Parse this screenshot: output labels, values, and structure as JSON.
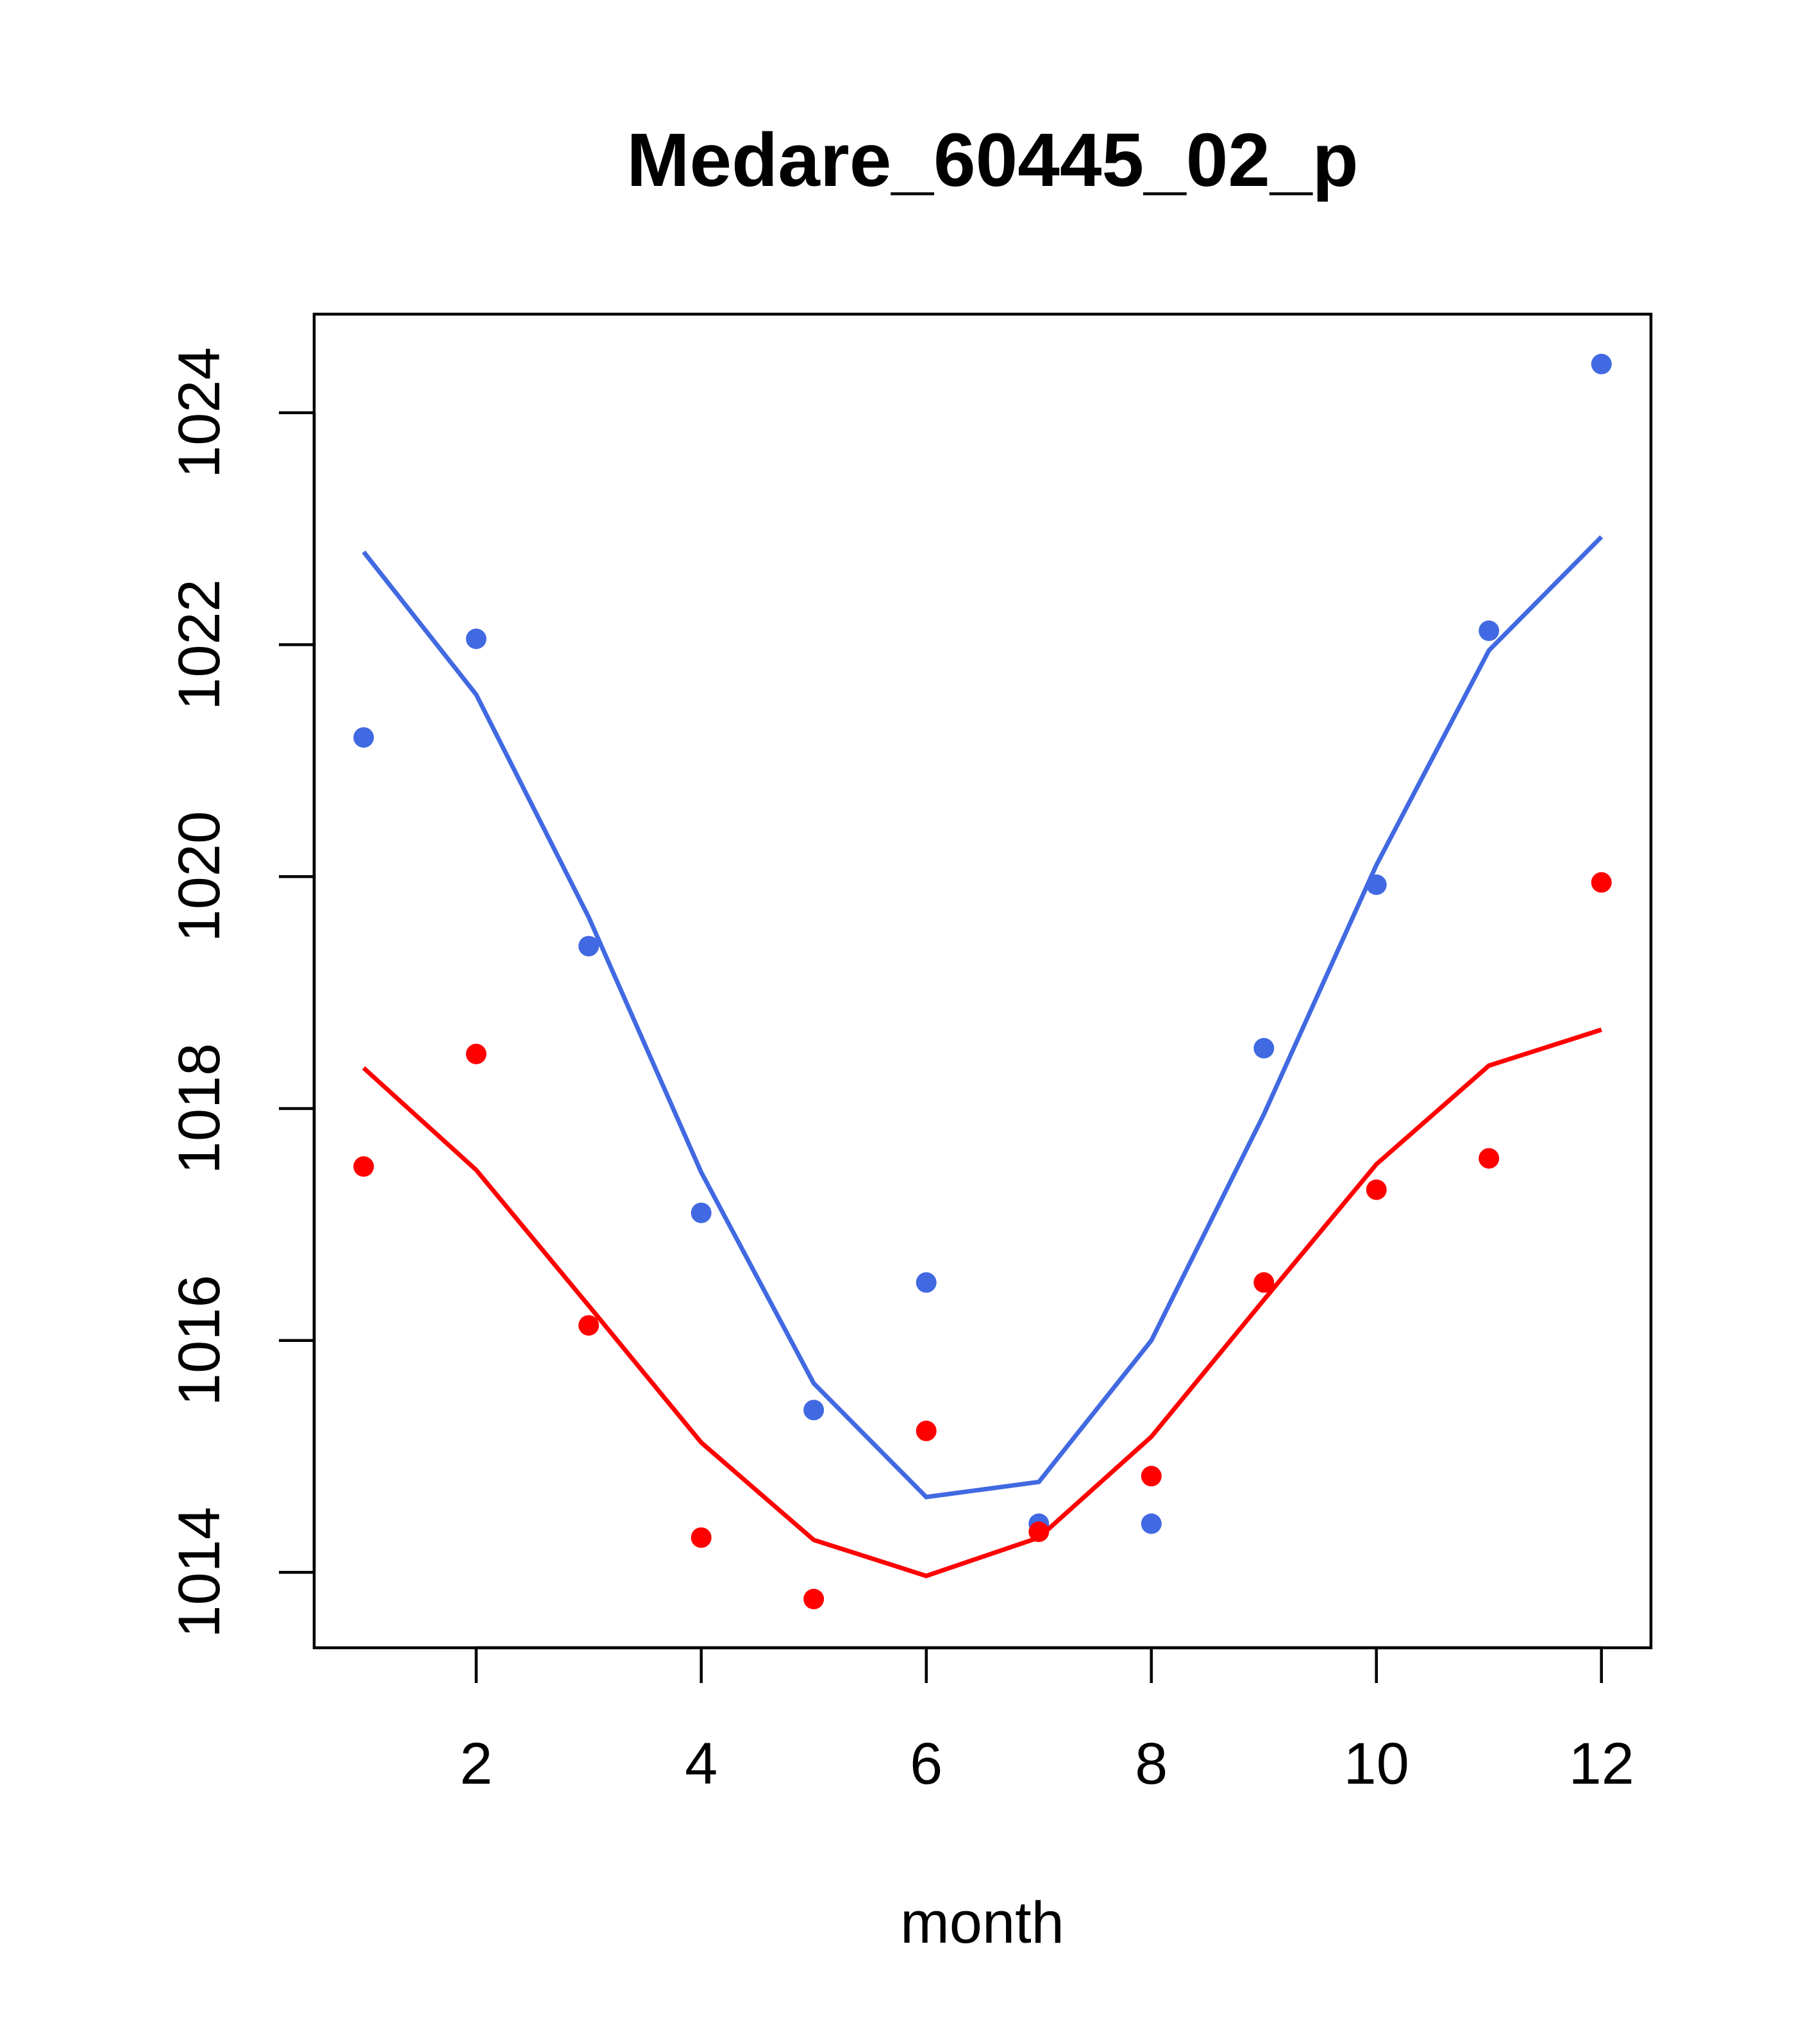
{
  "chart_data": {
    "type": "scatter",
    "title": "Medare_60445_02_p",
    "xlabel": "month",
    "ylabel": "",
    "xlim": [
      0.56,
      12.44
    ],
    "ylim": [
      1013.35,
      1024.85
    ],
    "x_ticks": [
      2,
      4,
      6,
      8,
      10,
      12
    ],
    "y_ticks": [
      1014,
      1016,
      1018,
      1020,
      1022,
      1024
    ],
    "grid": false,
    "series": [
      {
        "color": "#4169e1",
        "x": [
          1,
          2,
          3,
          4,
          5,
          6,
          7,
          8,
          9,
          10,
          11,
          12
        ],
        "points": [
          1021.2,
          1022.05,
          1019.4,
          1017.1,
          1015.4,
          1016.5,
          1014.42,
          1014.42,
          1018.52,
          1019.93,
          1022.12,
          1024.42
        ],
        "line": [
          1022.8,
          1021.57,
          1019.65,
          1017.45,
          1015.63,
          1014.65,
          1014.78,
          1016.0,
          1017.95,
          1020.1,
          1021.95,
          1022.93
        ]
      },
      {
        "color": "#ff0000",
        "x": [
          1,
          2,
          3,
          4,
          5,
          6,
          7,
          8,
          9,
          10,
          11,
          12
        ],
        "points": [
          1017.5,
          1018.47,
          1016.13,
          1014.3,
          1013.77,
          1015.22,
          1014.35,
          1014.83,
          1016.5,
          1017.3,
          1017.57,
          1019.95
        ],
        "line": [
          1018.35,
          1017.47,
          1016.3,
          1015.12,
          1014.28,
          1013.97,
          1014.3,
          1015.17,
          1016.35,
          1017.52,
          1018.37,
          1018.68
        ]
      }
    ]
  }
}
